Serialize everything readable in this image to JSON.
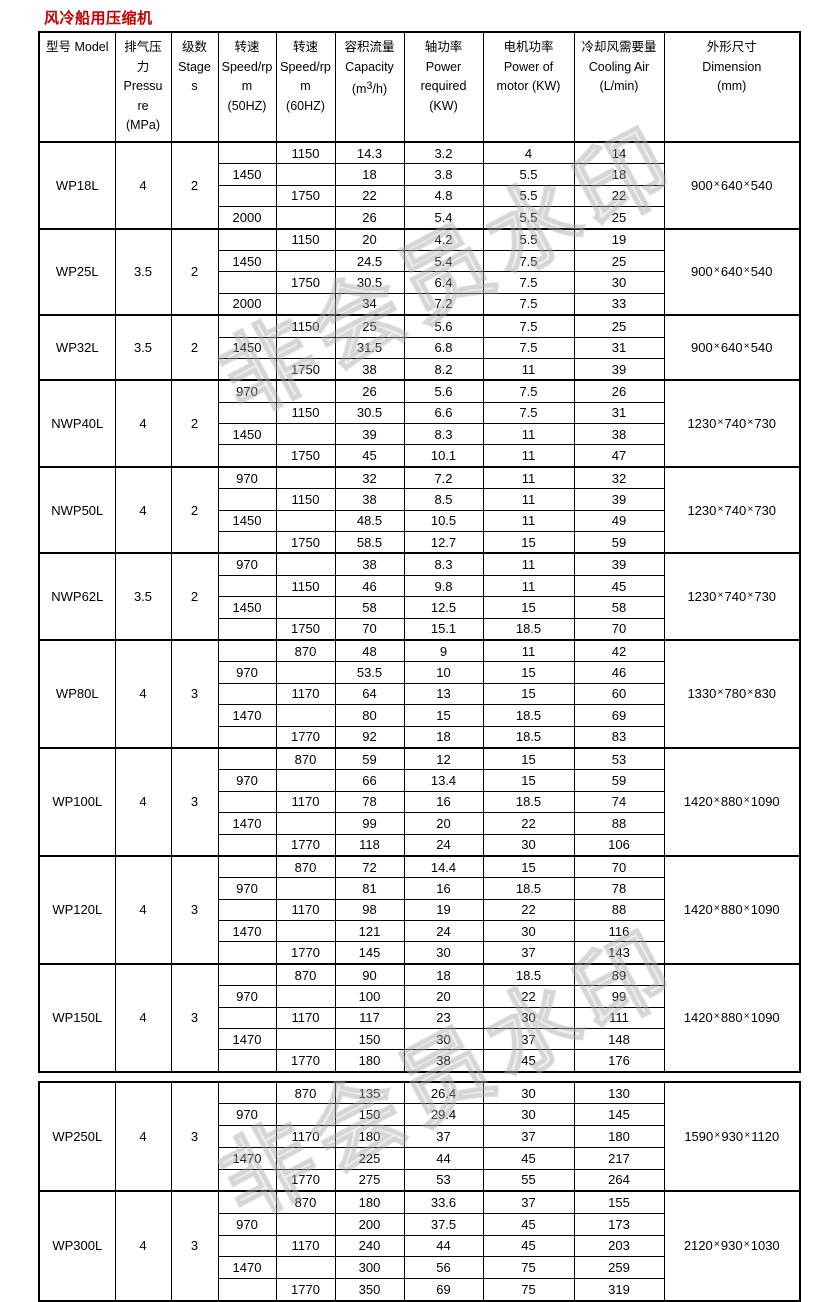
{
  "page_title": "风冷船用压缩机",
  "title_color": "#c00000",
  "watermark": {
    "text": "非会员水印",
    "color": "#d9d9d9"
  },
  "columns": [
    {
      "key": "model",
      "lines": [
        "型号 Model"
      ]
    },
    {
      "key": "pressure",
      "lines": [
        "排气压",
        "力",
        "Pressu",
        "re",
        "(MPa)"
      ]
    },
    {
      "key": "stages",
      "lines": [
        "级数",
        "Stage",
        "s"
      ]
    },
    {
      "key": "speed50",
      "lines": [
        "转速",
        "Speed/rp",
        "m",
        "(50HZ)"
      ]
    },
    {
      "key": "speed60",
      "lines": [
        "转速",
        "Speed/rp",
        "m",
        "(60HZ)"
      ]
    },
    {
      "key": "capacity",
      "lines": [
        "容积流量",
        "Capacity",
        "(m³/h)"
      ]
    },
    {
      "key": "power-required",
      "lines": [
        "轴功率",
        "Power",
        "required",
        "(KW)"
      ]
    },
    {
      "key": "motor-power",
      "lines": [
        "电机功率",
        "Power of",
        "motor (KW)"
      ]
    },
    {
      "key": "cooling-air",
      "lines": [
        "冷却风需要量",
        "Cooling Air",
        "(L/min)"
      ]
    },
    {
      "key": "dimension",
      "lines": [
        "外形尺寸",
        "Dimension",
        "(mm)"
      ]
    }
  ],
  "row_fields": [
    "speed-50hz",
    "speed-60hz",
    "capacity-m3h",
    "power-required-kw",
    "motor-power-kw",
    "cooling-air-lmin"
  ],
  "tables": [
    {
      "blocks": [
        {
          "model": "WP18L",
          "pressure_mpa": "4",
          "stages": "2",
          "dimension_mm": "900×640×540",
          "rows": [
            [
              "",
              "1150",
              "14.3",
              "3.2",
              "4",
              "14"
            ],
            [
              "1450",
              "",
              "18",
              "3.8",
              "5.5",
              "18"
            ],
            [
              "",
              "1750",
              "22",
              "4.8",
              "5.5",
              "22"
            ],
            [
              "2000",
              "",
              "26",
              "5.4",
              "5.5",
              "25"
            ]
          ]
        },
        {
          "model": "WP25L",
          "pressure_mpa": "3.5",
          "stages": "2",
          "dimension_mm": "900×640×540",
          "rows": [
            [
              "",
              "1150",
              "20",
              "4.2",
              "5.5",
              "19"
            ],
            [
              "1450",
              "",
              "24.5",
              "5.4",
              "7.5",
              "25"
            ],
            [
              "",
              "1750",
              "30.5",
              "6.4",
              "7.5",
              "30"
            ],
            [
              "2000",
              "",
              "34",
              "7.2",
              "7.5",
              "33"
            ]
          ]
        },
        {
          "model": "WP32L",
          "pressure_mpa": "3.5",
          "stages": "2",
          "dimension_mm": "900×640×540",
          "rows": [
            [
              "",
              "1150",
              "25",
              "5.6",
              "7.5",
              "25"
            ],
            [
              "1450",
              "",
              "31.5",
              "6.8",
              "7.5",
              "31"
            ],
            [
              "",
              "1750",
              "38",
              "8.2",
              "11",
              "39"
            ]
          ]
        },
        {
          "model": "NWP40L",
          "pressure_mpa": "4",
          "stages": "2",
          "dimension_mm": "1230×740×730",
          "rows": [
            [
              "970",
              "",
              "26",
              "5.6",
              "7.5",
              "26"
            ],
            [
              "",
              "1150",
              "30.5",
              "6.6",
              "7.5",
              "31"
            ],
            [
              "1450",
              "",
              "39",
              "8.3",
              "11",
              "38"
            ],
            [
              "",
              "1750",
              "45",
              "10.1",
              "11",
              "47"
            ]
          ]
        },
        {
          "model": "NWP50L",
          "pressure_mpa": "4",
          "stages": "2",
          "dimension_mm": "1230×740×730",
          "rows": [
            [
              "970",
              "",
              "32",
              "7.2",
              "11",
              "32"
            ],
            [
              "",
              "1150",
              "38",
              "8.5",
              "11",
              "39"
            ],
            [
              "1450",
              "",
              "48.5",
              "10.5",
              "11",
              "49"
            ],
            [
              "",
              "1750",
              "58.5",
              "12.7",
              "15",
              "59"
            ]
          ]
        },
        {
          "model": "NWP62L",
          "pressure_mpa": "3.5",
          "stages": "2",
          "dimension_mm": "1230×740×730",
          "rows": [
            [
              "970",
              "",
              "38",
              "8.3",
              "11",
              "39"
            ],
            [
              "",
              "1150",
              "46",
              "9.8",
              "11",
              "45"
            ],
            [
              "1450",
              "",
              "58",
              "12.5",
              "15",
              "58"
            ],
            [
              "",
              "1750",
              "70",
              "15.1",
              "18.5",
              "70"
            ]
          ]
        },
        {
          "model": "WP80L",
          "pressure_mpa": "4",
          "stages": "3",
          "dimension_mm": "1330×780×830",
          "rows": [
            [
              "",
              "870",
              "48",
              "9",
              "11",
              "42"
            ],
            [
              "970",
              "",
              "53.5",
              "10",
              "15",
              "46"
            ],
            [
              "",
              "1170",
              "64",
              "13",
              "15",
              "60"
            ],
            [
              "1470",
              "",
              "80",
              "15",
              "18.5",
              "69"
            ],
            [
              "",
              "1770",
              "92",
              "18",
              "18.5",
              "83"
            ]
          ]
        },
        {
          "model": "WP100L",
          "pressure_mpa": "4",
          "stages": "3",
          "dimension_mm": "1420×880×1090",
          "rows": [
            [
              "",
              "870",
              "59",
              "12",
              "15",
              "53"
            ],
            [
              "970",
              "",
              "66",
              "13.4",
              "15",
              "59"
            ],
            [
              "",
              "1170",
              "78",
              "16",
              "18.5",
              "74"
            ],
            [
              "1470",
              "",
              "99",
              "20",
              "22",
              "88"
            ],
            [
              "",
              "1770",
              "118",
              "24",
              "30",
              "106"
            ]
          ]
        },
        {
          "model": "WP120L",
          "pressure_mpa": "4",
          "stages": "3",
          "dimension_mm": "1420×880×1090",
          "rows": [
            [
              "",
              "870",
              "72",
              "14.4",
              "15",
              "70"
            ],
            [
              "970",
              "",
              "81",
              "16",
              "18.5",
              "78"
            ],
            [
              "",
              "1170",
              "98",
              "19",
              "22",
              "88"
            ],
            [
              "1470",
              "",
              "121",
              "24",
              "30",
              "116"
            ],
            [
              "",
              "1770",
              "145",
              "30",
              "37",
              "143"
            ]
          ]
        },
        {
          "model": "WP150L",
          "pressure_mpa": "4",
          "stages": "3",
          "dimension_mm": "1420×880×1090",
          "rows": [
            [
              "",
              "870",
              "90",
              "18",
              "18.5",
              "89"
            ],
            [
              "970",
              "",
              "100",
              "20",
              "22",
              "99"
            ],
            [
              "",
              "1170",
              "117",
              "23",
              "30",
              "111"
            ],
            [
              "1470",
              "",
              "150",
              "30",
              "37",
              "148"
            ],
            [
              "",
              "1770",
              "180",
              "38",
              "45",
              "176"
            ]
          ]
        }
      ]
    },
    {
      "blocks": [
        {
          "model": "WP250L",
          "pressure_mpa": "4",
          "stages": "3",
          "dimension_mm": "1590×930×1120",
          "rows": [
            [
              "",
              "870",
              "135",
              "26.4",
              "30",
              "130"
            ],
            [
              "970",
              "",
              "150",
              "29.4",
              "30",
              "145"
            ],
            [
              "",
              "1170",
              "180",
              "37",
              "37",
              "180"
            ],
            [
              "1470",
              "",
              "225",
              "44",
              "45",
              "217"
            ],
            [
              "",
              "1770",
              "275",
              "53",
              "55",
              "264"
            ]
          ]
        },
        {
          "model": "WP300L",
          "pressure_mpa": "4",
          "stages": "3",
          "dimension_mm": "2120×930×1030",
          "rows": [
            [
              "",
              "870",
              "180",
              "33.6",
              "37",
              "155"
            ],
            [
              "970",
              "",
              "200",
              "37.5",
              "45",
              "173"
            ],
            [
              "",
              "1170",
              "240",
              "44",
              "45",
              "203"
            ],
            [
              "1470",
              "",
              "300",
              "56",
              "75",
              "259"
            ],
            [
              "",
              "1770",
              "350",
              "69",
              "75",
              "319"
            ]
          ]
        }
      ]
    }
  ]
}
